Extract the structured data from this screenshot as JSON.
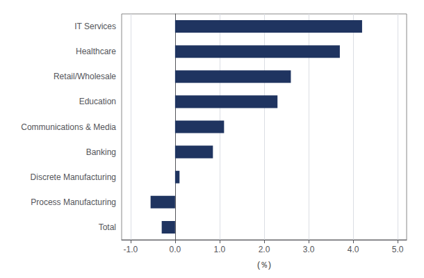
{
  "chart_data": {
    "type": "bar",
    "orientation": "horizontal",
    "categories": [
      "IT Services",
      "Healthcare",
      "Retail/Wholesale",
      "Education",
      "Communications & Media",
      "Banking",
      "Discrete Manufacturing",
      "Process Manufacturing",
      "Total"
    ],
    "values": [
      4.2,
      3.7,
      2.6,
      2.3,
      1.1,
      0.85,
      0.1,
      -0.55,
      -0.3
    ],
    "color": "#1f3460",
    "xlabel": "(％)",
    "xlim": [
      -1.2,
      5.2
    ],
    "xticks": [
      {
        "value": -1.0,
        "label": "-1.0"
      },
      {
        "value": 0.0,
        "label": "0.0"
      },
      {
        "value": 1.0,
        "label": "1.0"
      },
      {
        "value": 2.0,
        "label": "2.0"
      },
      {
        "value": 3.0,
        "label": "3.0"
      },
      {
        "value": 4.0,
        "label": "4.0"
      },
      {
        "value": 5.0,
        "label": "5.0"
      }
    ],
    "grid": true
  }
}
